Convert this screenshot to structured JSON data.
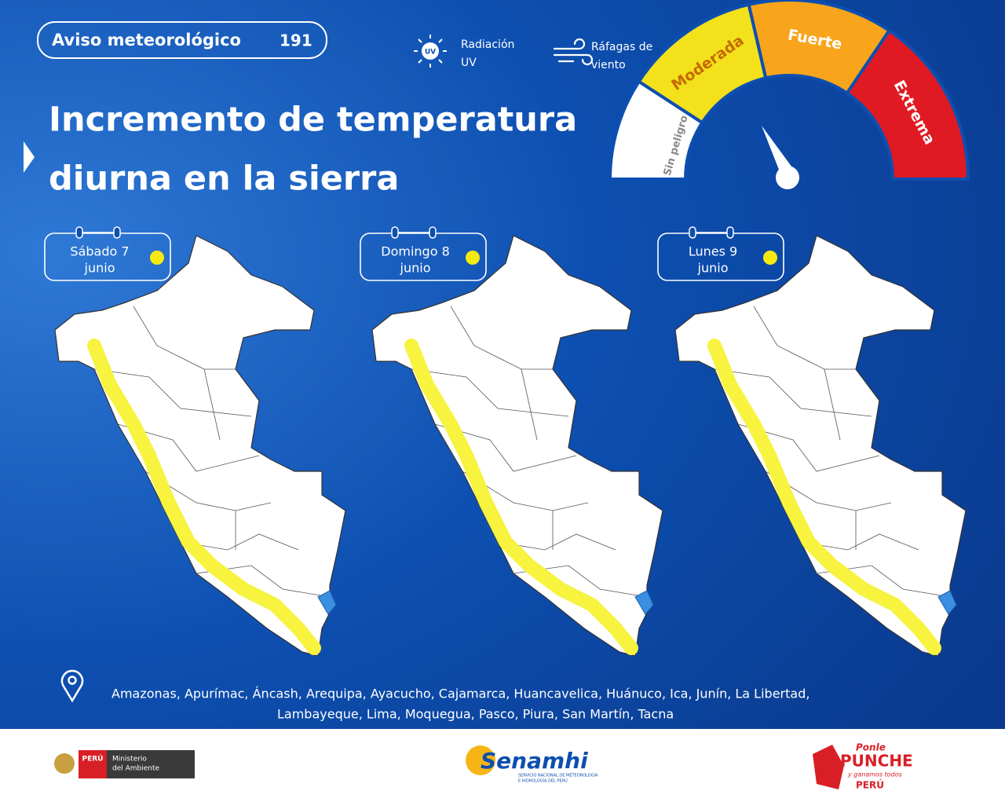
{
  "badge": {
    "label": "Aviso meteorológico",
    "number": "191"
  },
  "legend": [
    {
      "icon": "UV",
      "lines": [
        "Radiación",
        "UV"
      ]
    },
    {
      "lines": [
        "Ráfagas de",
        "viento"
      ]
    }
  ],
  "title": [
    "Incremento de temperatura",
    "diurna en la sierra"
  ],
  "gauge": [
    "Sin peligro",
    "Moderada",
    "Fuerte",
    "Extrema"
  ],
  "days": [
    {
      "day": "Sábado 7",
      "month": "junio"
    },
    {
      "day": "Domingo 8",
      "month": "junio"
    },
    {
      "day": "Lunes 9",
      "month": "junio"
    }
  ],
  "regions": [
    "Amazonas,  Apurímac, Áncash, Arequipa, Ayacucho, Cajamarca, Huancavelica, Huánuco, Ica, Junín, La Libertad,",
    "Lambayeque, Lima, Moquegua, Pasco, Piura, San Martín, Tacna"
  ],
  "footer": {
    "peru": "PERÚ",
    "ministry": [
      "Ministerio",
      "del Ambiente"
    ],
    "senamhi": "Senamhi",
    "senamhi_sub": [
      "SERVICIO NACIONAL DE METEOROLOGÍA",
      "E HIDROLOGÍA DEL PERÚ"
    ],
    "punche": [
      "Ponle",
      "PUNCHE",
      "y ganamos todos",
      "PERÚ"
    ]
  }
}
